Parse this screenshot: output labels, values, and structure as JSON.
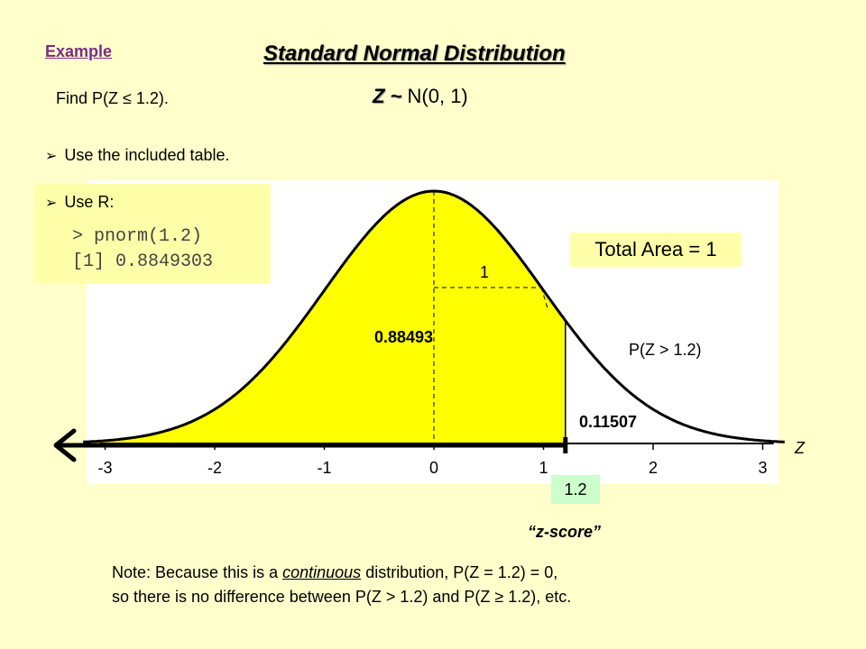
{
  "header": {
    "example_label": "Example",
    "title": "Standard Normal Distribution"
  },
  "problem": {
    "find_text": "Find  P(Z ≤ 1.2).",
    "distribution_prefix": "Z ~",
    "distribution_suffix": " N(0, 1)"
  },
  "bullets": {
    "table": "Use the included table.",
    "r_label": "Use R:",
    "r_command": "> pnorm(1.2)",
    "r_output": "[1] 0.8849303"
  },
  "plot": {
    "total_area_label": "Total Area = 1",
    "height_label": "1",
    "left_area_label": "0.88493",
    "right_area_label": "0.11507",
    "right_prob_label": "P(Z > 1.2)",
    "axis_label": "Z",
    "x_ticks": [
      "-3",
      "-2",
      "-1",
      "0",
      "1",
      "2",
      "3"
    ],
    "x_tick_values": [
      -3,
      -2,
      -1,
      0,
      1,
      2,
      3
    ],
    "z_value": 1.2,
    "z_value_label": "1.2",
    "z_caption": "“z-score”",
    "fill_color": "#ffff00",
    "curve_color": "#000000"
  },
  "note": {
    "line1_a": "Note:  Because this is a ",
    "line1_u": "continuous",
    "line1_b": " distribution, P(Z = 1.2) = 0,",
    "line2": "so there is no difference between P(Z > 1.2) and P(Z ≥ 1.2), etc."
  },
  "colors": {
    "background": "#ffffcc",
    "example_link": "#7a2c82",
    "r_box": "#ffffaa",
    "z_box": "#ccffcc"
  }
}
